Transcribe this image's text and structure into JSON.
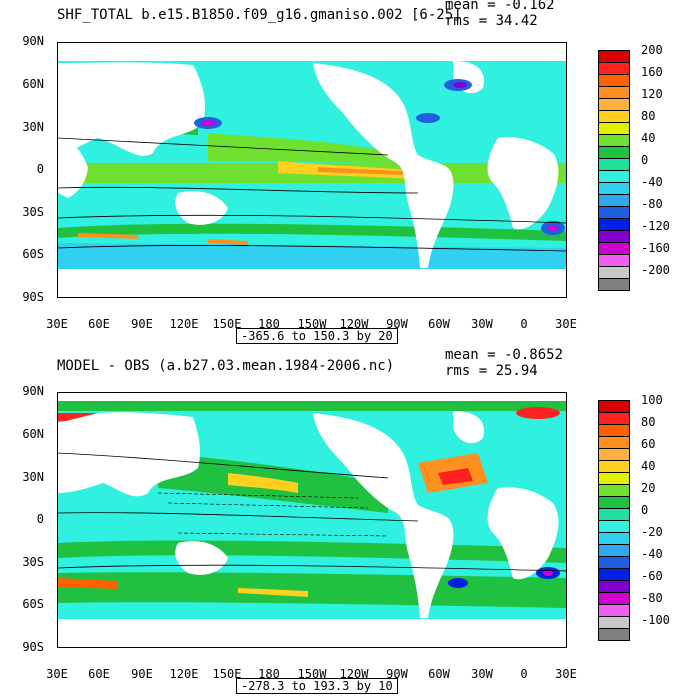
{
  "panels": [
    {
      "title": "SHF_TOTAL b.e15.B1850.f09_g16.gmaniso.002 [6-25]",
      "mean": "mean = -0.162",
      "rms": "rms = 34.42",
      "range": "-365.6 to 150.3 by 20",
      "colorbar_labels": [
        "200",
        "160",
        "120",
        "80",
        "40",
        "0",
        "-40",
        "-80",
        "-120",
        "-160",
        "-200"
      ],
      "colorbar_colors": [
        "#d80000",
        "#ff2020",
        "#ff6000",
        "#ff9020",
        "#ffb040",
        "#ffd020",
        "#e0f000",
        "#70e030",
        "#20c040",
        "#20e0a0",
        "#30f0e0",
        "#30d0f0",
        "#30a8f0",
        "#2060e0",
        "#0020e8",
        "#8000d0",
        "#d000d0",
        "#f060f0",
        "#c8c8c8",
        "#808080"
      ]
    },
    {
      "title": "MODEL - OBS (a.b27.03.mean.1984-2006.nc)",
      "mean": "mean = -0.8652",
      "rms": "rms = 25.94",
      "range": "-278.3 to 193.3 by 10",
      "colorbar_labels": [
        "100",
        "80",
        "60",
        "40",
        "20",
        "0",
        "-20",
        "-40",
        "-60",
        "-80",
        "-100"
      ],
      "colorbar_colors": [
        "#d80000",
        "#ff2020",
        "#ff6000",
        "#ff9020",
        "#ffb040",
        "#ffd020",
        "#e0f000",
        "#70e030",
        "#20c040",
        "#20e0a0",
        "#30f0e0",
        "#30d0f0",
        "#30a8f0",
        "#2060e0",
        "#0020e8",
        "#8000d0",
        "#d000d0",
        "#f060f0",
        "#c8c8c8",
        "#808080"
      ]
    }
  ],
  "y_ticks": [
    "90N",
    "60N",
    "30N",
    "0",
    "30S",
    "60S",
    "90S"
  ],
  "x_ticks": [
    "30E",
    "60E",
    "90E",
    "120E",
    "150E",
    "180",
    "150W",
    "120W",
    "90W",
    "60W",
    "30W",
    "0",
    "30E"
  ]
}
